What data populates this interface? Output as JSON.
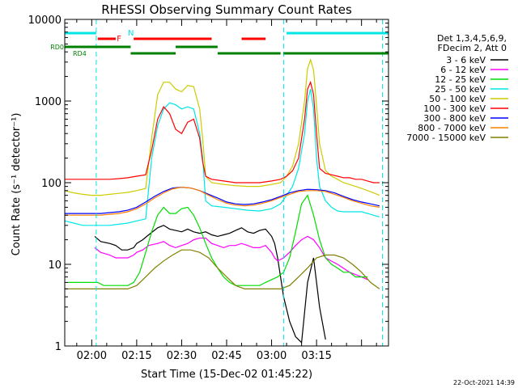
{
  "chart_data": {
    "type": "line",
    "title": "RHESSI Observing Summary Count Rates",
    "xlabel": "Start Time (15-Dec-02 01:45:22)",
    "ylabel": "Count Rate (s⁻¹ detector⁻¹)",
    "y_scale": "log",
    "ylim": [
      1,
      10000
    ],
    "xlim_minutes": [
      -9,
      99
    ],
    "x_ticks": [
      {
        "label": "02:00",
        "minutes": 0
      },
      {
        "label": "02:15",
        "minutes": 15
      },
      {
        "label": "02:30",
        "minutes": 30
      },
      {
        "label": "02:45",
        "minutes": 45
      },
      {
        "label": "03:00",
        "minutes": 60
      },
      {
        "label": "03:15",
        "minutes": 75
      }
    ],
    "y_ticks": [
      "1",
      "10",
      "100",
      "1000",
      "10000"
    ],
    "grid": false,
    "legend_header": [
      "Det 1,3,4,5,6,9,",
      "FDecim 2, Att 0"
    ],
    "legend_position": "right",
    "series": [
      {
        "name": "3 - 6 keV",
        "color": "#000000",
        "x": [
          1,
          3,
          6,
          8,
          10,
          12,
          14,
          15,
          17,
          19,
          22,
          24,
          26,
          28,
          30,
          32,
          34,
          36,
          38,
          40,
          42,
          44,
          46,
          48,
          50,
          52,
          54,
          56,
          58,
          60,
          61,
          62,
          64,
          66,
          68,
          70,
          72,
          74,
          76,
          78
        ],
        "y": [
          22,
          19,
          18,
          17,
          15,
          15,
          16,
          18,
          20,
          23,
          28,
          30,
          27,
          26,
          25,
          27,
          25,
          24,
          25,
          23,
          22,
          23,
          24,
          26,
          28,
          25,
          24,
          26,
          27,
          22,
          18,
          12,
          4,
          2,
          1.3,
          1.1,
          6,
          12,
          3,
          1.2
        ]
      },
      {
        "name": "6 - 12 keV",
        "color": "#ff00ff",
        "x": [
          1,
          3,
          6,
          8,
          10,
          12,
          14,
          15,
          17,
          19,
          22,
          24,
          26,
          28,
          30,
          32,
          34,
          36,
          38,
          40,
          42,
          44,
          46,
          48,
          50,
          52,
          54,
          56,
          58,
          60,
          61,
          62,
          64,
          66,
          68,
          70,
          72,
          74,
          76,
          78,
          82,
          86,
          90,
          92
        ],
        "y": [
          16,
          14,
          13,
          12,
          12,
          12,
          13,
          14,
          15,
          17,
          18,
          19,
          17,
          16,
          17,
          18,
          20,
          21,
          21,
          18,
          17,
          16,
          17,
          17,
          18,
          17,
          16,
          16,
          17,
          14,
          12,
          11,
          12,
          14,
          17,
          20,
          22,
          20,
          16,
          12,
          10,
          8,
          7,
          6.5
        ]
      },
      {
        "name": "12 - 25 keV",
        "color": "#00dd00",
        "x": [
          -8,
          -6,
          -4,
          -2,
          0,
          2,
          4,
          6,
          8,
          10,
          12,
          14,
          16,
          18,
          20,
          22,
          24,
          26,
          28,
          30,
          32,
          34,
          36,
          38,
          40,
          42,
          44,
          46,
          48,
          50,
          52,
          54,
          56,
          58,
          60,
          62,
          64,
          66,
          68,
          70,
          72,
          74,
          76,
          78,
          80,
          82,
          84,
          86,
          88,
          90,
          92
        ],
        "y": [
          6,
          6,
          6,
          6,
          6,
          6,
          5.5,
          5.5,
          5.5,
          5.5,
          5.5,
          6,
          8,
          14,
          25,
          40,
          50,
          42,
          42,
          48,
          50,
          40,
          28,
          18,
          12,
          9,
          7,
          6,
          5.5,
          5.5,
          5.5,
          5.5,
          5.5,
          6,
          6.5,
          7,
          8,
          12,
          25,
          55,
          70,
          40,
          20,
          12,
          10,
          9,
          8,
          8,
          7,
          7,
          7
        ]
      },
      {
        "name": "25 - 50 keV",
        "color": "#00e5e5",
        "x": [
          -9,
          -6,
          -3,
          0,
          3,
          6,
          9,
          12,
          15,
          18,
          20,
          22,
          24,
          26,
          28,
          30,
          32,
          34,
          36,
          37,
          38,
          40,
          44,
          48,
          52,
          56,
          60,
          63,
          65,
          67,
          69,
          71,
          72,
          73,
          74,
          75,
          76,
          78,
          80,
          82,
          84,
          86,
          88,
          90,
          92,
          94,
          96
        ],
        "y": [
          34,
          32,
          30,
          30,
          30,
          30,
          31,
          32,
          34,
          36,
          200,
          500,
          800,
          950,
          900,
          800,
          850,
          800,
          400,
          200,
          60,
          52,
          50,
          48,
          46,
          45,
          48,
          55,
          70,
          90,
          150,
          400,
          1000,
          1400,
          800,
          200,
          90,
          60,
          50,
          45,
          44,
          44,
          44,
          44,
          42,
          40,
          38
        ]
      },
      {
        "name": "50 - 100 keV",
        "color": "#cccc00",
        "x": [
          -9,
          -6,
          -3,
          0,
          3,
          6,
          9,
          12,
          15,
          18,
          20,
          22,
          24,
          26,
          28,
          30,
          32,
          34,
          36,
          37,
          38,
          40,
          44,
          48,
          52,
          56,
          60,
          63,
          65,
          67,
          69,
          71,
          72,
          73,
          74,
          75,
          76,
          78,
          80,
          82,
          84,
          86,
          88,
          90,
          92,
          94,
          96
        ],
        "y": [
          80,
          75,
          72,
          70,
          70,
          72,
          74,
          76,
          80,
          85,
          350,
          1200,
          1700,
          1700,
          1400,
          1300,
          1550,
          1500,
          800,
          350,
          120,
          100,
          95,
          92,
          90,
          90,
          95,
          100,
          120,
          160,
          300,
          1000,
          2500,
          3200,
          2400,
          900,
          300,
          140,
          120,
          110,
          100,
          95,
          90,
          85,
          80,
          75,
          70
        ]
      },
      {
        "name": "100 - 300 keV",
        "color": "#ff0000",
        "x": [
          -9,
          -6,
          -3,
          0,
          3,
          6,
          9,
          12,
          15,
          18,
          20,
          22,
          24,
          26,
          28,
          30,
          32,
          34,
          36,
          37,
          38,
          40,
          44,
          48,
          52,
          56,
          60,
          63,
          65,
          67,
          69,
          71,
          72,
          73,
          74,
          75,
          76,
          78,
          80,
          82,
          84,
          86,
          88,
          90,
          92,
          94,
          96
        ],
        "y": [
          110,
          110,
          110,
          110,
          110,
          110,
          112,
          115,
          120,
          125,
          250,
          600,
          850,
          700,
          450,
          400,
          550,
          600,
          350,
          180,
          120,
          110,
          105,
          100,
          100,
          100,
          105,
          110,
          120,
          140,
          200,
          600,
          1400,
          1700,
          1200,
          400,
          150,
          130,
          125,
          120,
          115,
          115,
          110,
          110,
          105,
          100,
          100
        ]
      },
      {
        "name": "300 - 800 keV",
        "color": "#0000ff",
        "x": [
          -9,
          -6,
          -3,
          0,
          3,
          6,
          9,
          12,
          15,
          18,
          21,
          24,
          27,
          30,
          33,
          36,
          39,
          42,
          45,
          48,
          51,
          54,
          57,
          60,
          63,
          66,
          69,
          72,
          75,
          78,
          81,
          84,
          87,
          90,
          93,
          96
        ],
        "y": [
          42,
          42,
          42,
          42,
          42,
          43,
          44,
          46,
          50,
          58,
          68,
          78,
          86,
          88,
          86,
          80,
          72,
          65,
          58,
          55,
          54,
          55,
          58,
          62,
          68,
          75,
          80,
          83,
          82,
          80,
          75,
          68,
          62,
          58,
          55,
          52
        ]
      },
      {
        "name": "800 - 7000 keV",
        "color": "#ff8000",
        "x": [
          -9,
          -6,
          -3,
          0,
          3,
          6,
          9,
          12,
          15,
          18,
          21,
          24,
          27,
          30,
          33,
          36,
          39,
          42,
          45,
          48,
          51,
          54,
          57,
          60,
          63,
          66,
          69,
          72,
          75,
          78,
          81,
          84,
          87,
          90,
          93,
          96
        ],
        "y": [
          40,
          40,
          40,
          40,
          40,
          41,
          42,
          44,
          48,
          55,
          65,
          75,
          84,
          88,
          86,
          80,
          70,
          62,
          56,
          53,
          52,
          53,
          56,
          60,
          66,
          72,
          78,
          80,
          80,
          78,
          72,
          66,
          60,
          56,
          52,
          50
        ]
      },
      {
        "name": "7000 - 15000 keV",
        "color": "#808000",
        "x": [
          -9,
          -6,
          -3,
          0,
          3,
          6,
          9,
          12,
          15,
          18,
          21,
          24,
          27,
          30,
          33,
          36,
          39,
          42,
          45,
          48,
          51,
          54,
          57,
          60,
          63,
          66,
          69,
          72,
          75,
          78,
          81,
          84,
          87,
          90,
          93,
          96
        ],
        "y": [
          5,
          5,
          5,
          5,
          5,
          5,
          5,
          5,
          5.5,
          7,
          9,
          11,
          13,
          15,
          15,
          14,
          12,
          9,
          7,
          5.5,
          5,
          5,
          5,
          5,
          5,
          5.5,
          7,
          9,
          12,
          13,
          13,
          12,
          10,
          8,
          6,
          5
        ]
      }
    ],
    "annotations": [
      {
        "label": "N",
        "color": "#00e5e5"
      },
      {
        "label": "F",
        "color": "#ff0000"
      },
      {
        "label": "RD0",
        "color": "#008000"
      },
      {
        "label": "RD4",
        "color": "#008000"
      }
    ],
    "flag_bars": {
      "N": {
        "color": "#00e5e5",
        "segments": [
          [
            -9,
            1.5
          ],
          [
            65,
            99
          ]
        ]
      },
      "F": {
        "color": "#ff0000",
        "segments": [
          [
            2,
            8
          ],
          [
            14,
            40
          ],
          [
            50,
            58
          ]
        ]
      },
      "RD0": {
        "color": "#008000",
        "segments": [
          [
            -9,
            13
          ],
          [
            28,
            42
          ]
        ]
      },
      "RD4": {
        "color": "#008000",
        "segments": [
          [
            13,
            28
          ],
          [
            42,
            63
          ],
          [
            64,
            99
          ]
        ]
      }
    },
    "vlines_minutes": [
      1.5,
      64,
      97
    ]
  },
  "footer": {
    "timestamp": "22-Oct-2021 14:39"
  }
}
